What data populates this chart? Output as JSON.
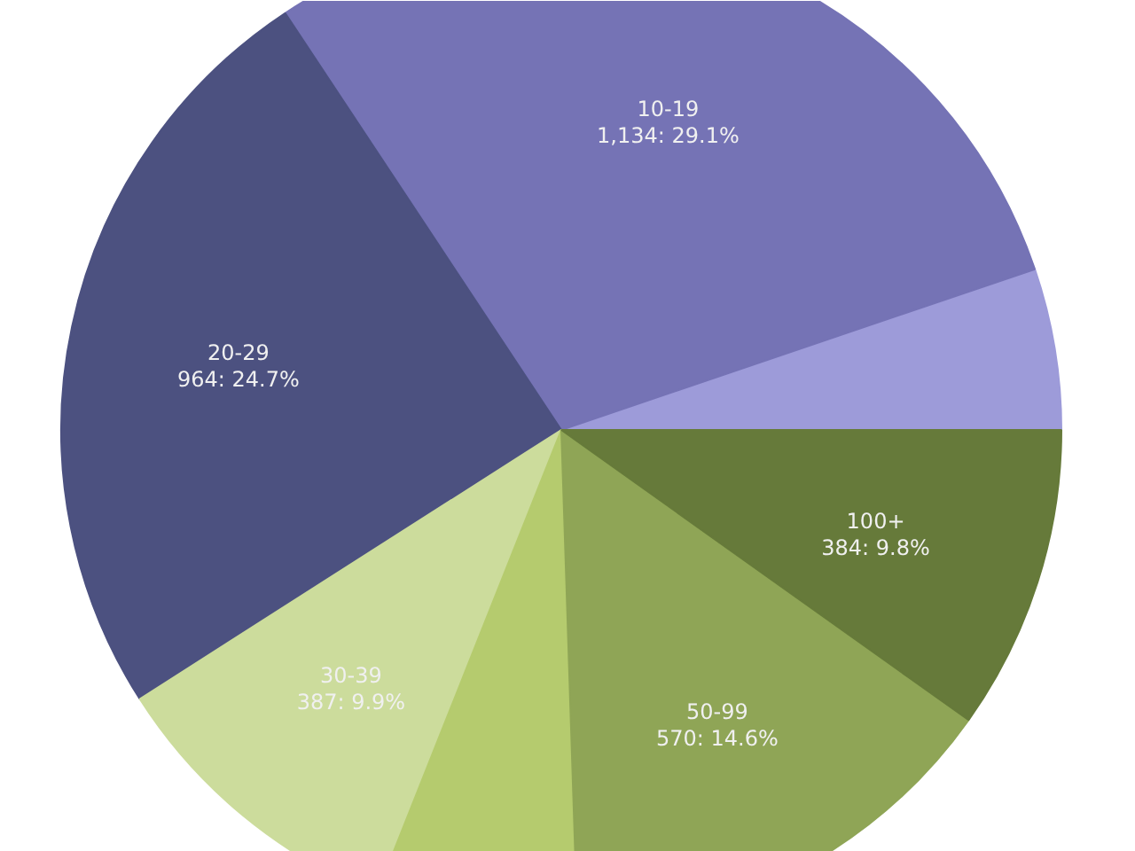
{
  "chart_data": {
    "type": "pie",
    "categories": [
      null,
      "10-19",
      "20-29",
      "30-39",
      null,
      "50-99",
      "100+"
    ],
    "values": [
      203,
      1134,
      964,
      387,
      255,
      570,
      384
    ],
    "colors": [
      "#9d9bd9",
      "#7573b5",
      "#4c5180",
      "#ccdc9c",
      "#b5cb6e",
      "#8fa556",
      "#667a3a"
    ],
    "value_labels": [
      null,
      "1,134: 29.1%",
      "964: 24.7%",
      "387: 9.9%",
      null,
      "570: 14.6%",
      "384: 9.8%"
    ]
  }
}
